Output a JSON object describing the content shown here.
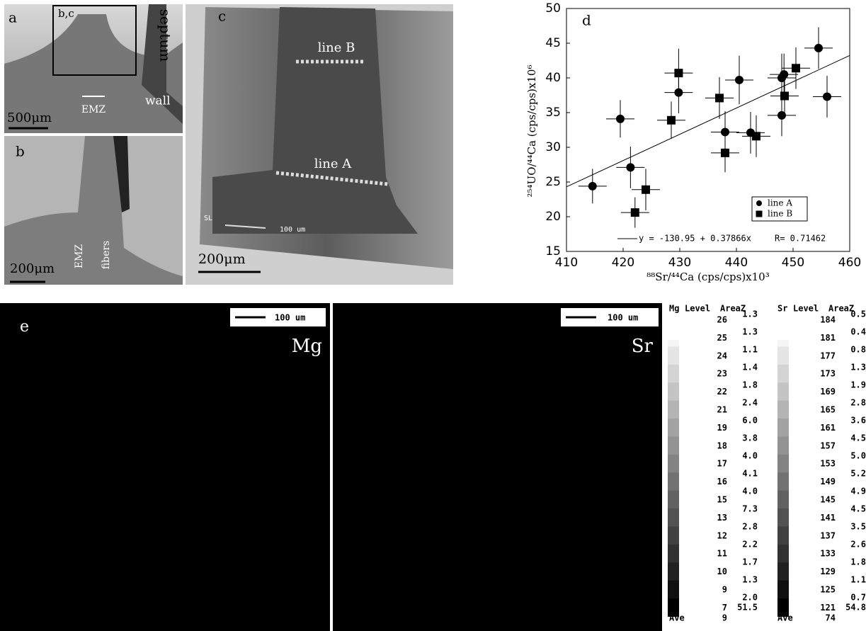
{
  "chart_data": {
    "type": "scatter",
    "label": "d",
    "xlabel": "⁸⁸Sr/⁴⁴Ca (cps/cps)x10³",
    "ylabel": "²⁵⁴UO/⁴⁴Ca (cps/cps)x10⁶",
    "xlim": [
      410,
      460
    ],
    "xticks": [
      410,
      420,
      430,
      440,
      450,
      460
    ],
    "ylim": [
      15,
      50
    ],
    "yticks": [
      15,
      20,
      25,
      30,
      35,
      40,
      45,
      50
    ],
    "legend": "lower right",
    "series": [
      {
        "name": "line A",
        "marker": "circle",
        "color": "#000000",
        "x": [
          414.6,
          419.5,
          421.3,
          429.8,
          438,
          440.5,
          442.5,
          448,
          448.4,
          448,
          454.5,
          456
        ],
        "values": [
          24.4,
          34.1,
          27.1,
          37.9,
          32.2,
          39.7,
          32.1,
          40,
          40.5,
          34.6,
          44.3,
          37.3
        ],
        "xerr": [
          2.5,
          2.5,
          2.5,
          2.5,
          2.5,
          2.5,
          2.5,
          2.5,
          2.5,
          2.5,
          2.5,
          2.5
        ],
        "yerr": [
          2.5,
          2.7,
          3,
          3,
          3,
          3.5,
          3,
          3.5,
          3,
          3,
          3,
          3
        ]
      },
      {
        "name": "line B",
        "marker": "square",
        "color": "#000000",
        "x": [
          429.8,
          437,
          428.5,
          438,
          443.5,
          448.5,
          450.5,
          424,
          422.1
        ],
        "values": [
          40.7,
          37.1,
          33.9,
          29.2,
          31.6,
          37.4,
          41.4,
          23.9,
          20.6
        ],
        "xerr": [
          2.5,
          2.5,
          2.5,
          2.5,
          2.5,
          2.5,
          2.5,
          2.5,
          2.5
        ],
        "yerr": [
          3.5,
          3,
          2.7,
          2.8,
          3,
          3,
          3,
          3,
          2.2
        ]
      }
    ],
    "fit": {
      "intercept": -130.95,
      "slope": 0.37866,
      "label": "y = -130.95 + 0.37866x",
      "r_label": "R= 0.71462"
    }
  },
  "panel_a": {
    "label": "a",
    "box_label": "b,c",
    "septum": "septum",
    "wall": "wall",
    "emz": "EMZ",
    "scale": "500μm"
  },
  "panel_b": {
    "label": "b",
    "emz": "EMZ",
    "fibers": "fibers",
    "scale": "200μm"
  },
  "panel_c": {
    "label": "c",
    "line_b": "line B",
    "line_a": "line A",
    "sl": "SL",
    "inner_scale": "100 um",
    "scale": "200μm"
  },
  "panel_e": {
    "label": "e",
    "mg_scale": "100 um",
    "mg": "Mg",
    "sr_scale": "100 um",
    "sr": "Sr"
  },
  "mg_legend": {
    "element": "Mg",
    "level_header": "Level",
    "area_header": "AreaZ",
    "levels": [
      "26",
      "25",
      "24",
      "23",
      "22",
      "21",
      "19",
      "18",
      "17",
      "16",
      "15",
      "13",
      "12",
      "11",
      "10",
      "9",
      "7"
    ],
    "areas": [
      "1.3",
      "1.3",
      "1.1",
      "1.4",
      "1.8",
      "2.4",
      "6.0",
      "3.8",
      "4.0",
      "4.1",
      "4.0",
      "7.3",
      "2.8",
      "2.2",
      "1.7",
      "1.3",
      "2.0"
    ],
    "ave_label": "Ave",
    "ave_level": "9",
    "ave_area": "51.5"
  },
  "sr_legend": {
    "element": "Sr",
    "level_header": "Level",
    "area_header": "AreaZ",
    "levels": [
      "184",
      "181",
      "177",
      "173",
      "169",
      "165",
      "161",
      "157",
      "153",
      "149",
      "145",
      "141",
      "137",
      "133",
      "129",
      "125",
      "121"
    ],
    "areas": [
      "0.5",
      "0.4",
      "0.8",
      "1.3",
      "1.9",
      "2.8",
      "3.6",
      "4.5",
      "5.0",
      "5.2",
      "4.9",
      "4.5",
      "3.5",
      "2.6",
      "1.8",
      "1.1",
      "0.7"
    ],
    "ave_label": "Ave",
    "ave_level": "74",
    "ave_area": "54.8"
  }
}
